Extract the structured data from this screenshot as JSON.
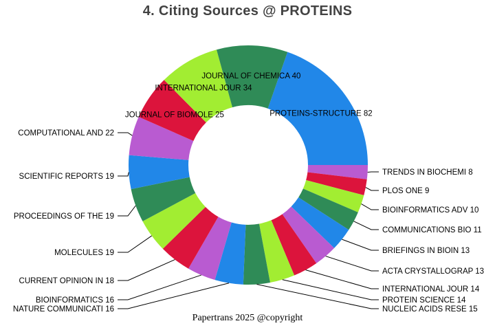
{
  "title": "4. Citing Sources @ PROTEINS",
  "footer": "Papertrans 2025 @copyright",
  "chart_data": {
    "type": "pie",
    "subtype": "donut",
    "title": "4. Citing Sources @ PROTEINS",
    "legend": false,
    "donut_hole_ratio": 0.5,
    "start_angle_deg": 70.8,
    "direction": "clockwise",
    "palette": [
      "#2187E8",
      "#B95BD1",
      "#DC143C",
      "#A2ED32",
      "#2F8B57"
    ],
    "slices": [
      {
        "label": "PROTEINS-STRUCTURE",
        "value": 82,
        "color": "#2187E8"
      },
      {
        "label": "TRENDS IN BIOCHEMI",
        "value": 8,
        "color": "#B95BD1"
      },
      {
        "label": "PLOS ONE",
        "value": 9,
        "color": "#DC143C"
      },
      {
        "label": "BIOINFORMATICS ADV",
        "value": 10,
        "color": "#A2ED32"
      },
      {
        "label": "COMMUNICATIONS BIO",
        "value": 11,
        "color": "#2F8B57"
      },
      {
        "label": "BRIEFINGS IN BIOIN",
        "value": 13,
        "color": "#2187E8"
      },
      {
        "label": "ACTA CRYSTALLOGRAP",
        "value": 13,
        "color": "#B95BD1"
      },
      {
        "label": "INTERNATIONAL JOUR",
        "value": 14,
        "color": "#DC143C"
      },
      {
        "label": "PROTEIN SCIENCE",
        "value": 14,
        "color": "#A2ED32"
      },
      {
        "label": "NUCLEIC ACIDS RESE",
        "value": 15,
        "color": "#2F8B57"
      },
      {
        "label": "NATURE COMMUNICATI",
        "value": 16,
        "color": "#2187E8"
      },
      {
        "label": "BIOINFORMATICS",
        "value": 16,
        "color": "#B95BD1"
      },
      {
        "label": "CURRENT OPINION IN",
        "value": 18,
        "color": "#DC143C"
      },
      {
        "label": "MOLECULES",
        "value": 19,
        "color": "#A2ED32"
      },
      {
        "label": "PROCEEDINGS OF THE",
        "value": 19,
        "color": "#2F8B57"
      },
      {
        "label": "SCIENTIFIC REPORTS",
        "value": 19,
        "color": "#2187E8"
      },
      {
        "label": "COMPUTATIONAL AND ",
        "value": 22,
        "color": "#B95BD1"
      },
      {
        "label": "JOURNAL OF BIOMOLE",
        "value": 25,
        "color": "#DC143C"
      },
      {
        "label": "INTERNATIONAL JOUR",
        "value": 34,
        "color": "#A2ED32"
      },
      {
        "label": "JOURNAL OF CHEMICA",
        "value": 40,
        "color": "#2F8B57"
      }
    ]
  }
}
